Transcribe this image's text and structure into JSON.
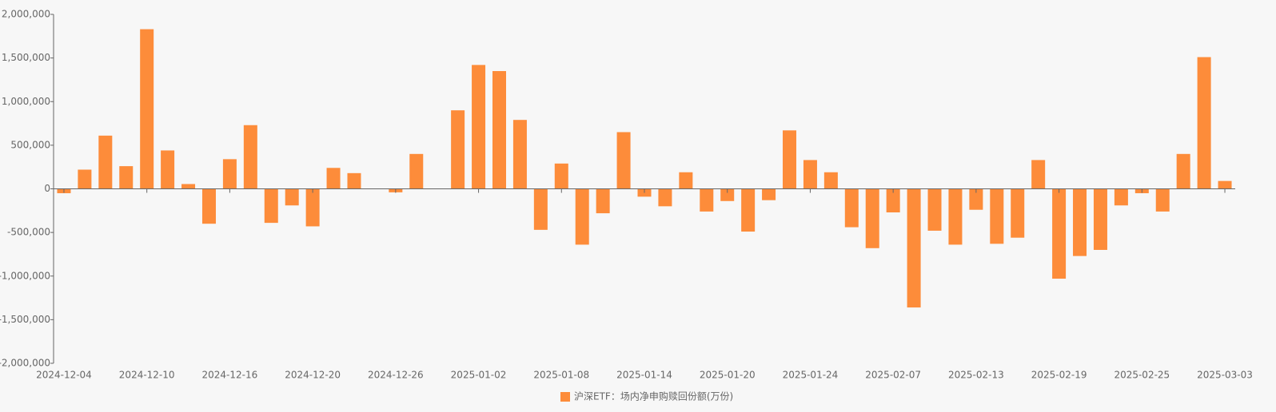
{
  "chart_data": {
    "type": "bar",
    "categories": [
      "2024-12-04",
      null,
      null,
      null,
      "2024-12-10",
      null,
      null,
      null,
      "2024-12-16",
      null,
      null,
      null,
      "2024-12-20",
      null,
      null,
      null,
      "2024-12-26",
      null,
      null,
      null,
      "2025-01-02",
      null,
      null,
      null,
      "2025-01-08",
      null,
      null,
      null,
      "2025-01-14",
      null,
      null,
      null,
      "2025-01-20",
      null,
      null,
      null,
      "2025-01-24",
      null,
      null,
      null,
      "2025-02-07",
      null,
      null,
      null,
      "2025-02-13",
      null,
      null,
      null,
      "2025-02-19",
      null,
      null,
      null,
      "2025-02-25",
      null,
      null,
      null,
      "2025-03-03"
    ],
    "series": [
      {
        "name": "沪深ETF：场内净申购赎回份额(万份)",
        "color": "#fd8c3a",
        "values": [
          -50000,
          220000,
          610000,
          260000,
          1830000,
          440000,
          55000,
          -400000,
          340000,
          730000,
          -390000,
          -190000,
          -430000,
          240000,
          180000,
          0,
          -40000,
          400000,
          0,
          900000,
          1420000,
          1350000,
          790000,
          -470000,
          290000,
          -640000,
          -280000,
          650000,
          -90000,
          -200000,
          190000,
          -260000,
          -140000,
          -490000,
          -130000,
          670000,
          330000,
          190000,
          -440000,
          -680000,
          -270000,
          -1360000,
          -480000,
          -640000,
          -240000,
          -630000,
          -560000,
          330000,
          -1030000,
          -770000,
          -700000,
          -190000,
          -50000,
          -260000,
          400000,
          1510000,
          90000
        ]
      }
    ],
    "ylim": [
      -2000000,
      2000000
    ],
    "yticks": [
      {
        "value": -2000000,
        "label": "-2,000,000"
      },
      {
        "value": -1500000,
        "label": "-1,500,000"
      },
      {
        "value": -1000000,
        "label": "-1,000,000"
      },
      {
        "value": -500000,
        "label": "-500,000"
      },
      0,
      {
        "value": 500000,
        "label": "500,000"
      },
      {
        "value": 1000000,
        "label": "1,000,000"
      },
      {
        "value": 1500000,
        "label": "1,500,000"
      },
      {
        "value": 2000000,
        "label": "2,000,000"
      }
    ],
    "legend": "bottom"
  }
}
